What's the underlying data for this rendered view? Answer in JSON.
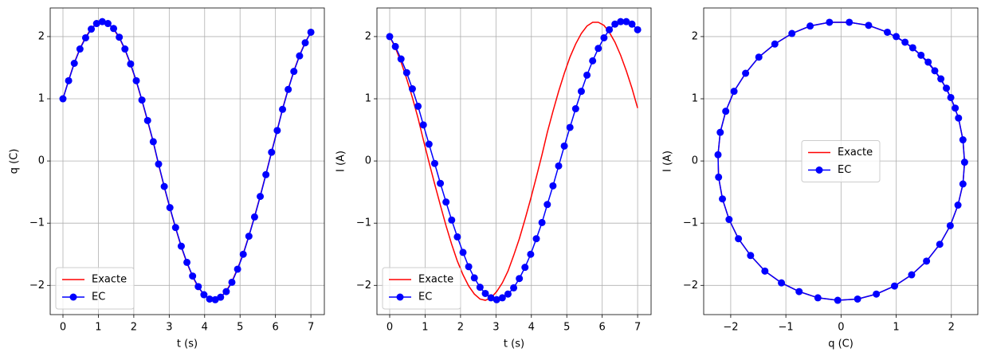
{
  "chart_data": [
    {
      "type": "line",
      "xlabel": "t (s)",
      "ylabel": "q (C)",
      "legend": "lower left",
      "grid": true,
      "x": [
        0,
        0.16,
        0.32,
        0.48,
        0.64,
        0.8,
        0.95,
        1.11,
        1.27,
        1.43,
        1.59,
        1.75,
        1.91,
        2.07,
        2.23,
        2.39,
        2.55,
        2.7,
        2.86,
        3.02,
        3.18,
        3.34,
        3.5,
        3.66,
        3.82,
        3.98,
        4.14,
        4.3,
        4.45,
        4.61,
        4.77,
        4.93,
        5.09,
        5.25,
        5.41,
        5.57,
        5.73,
        5.89,
        6.05,
        6.2,
        6.36,
        6.52,
        6.68,
        6.84,
        7
      ],
      "series": [
        {
          "name": "Exacte",
          "color": "#ff0000",
          "marker": false,
          "values": [
            1,
            1.3,
            1.58,
            1.81,
            1.99,
            2.13,
            2.21,
            2.24,
            2.21,
            2.12,
            1.98,
            1.79,
            1.55,
            1.28,
            0.97,
            0.64,
            0.3,
            -0.06,
            -0.42,
            -0.76,
            -1.08,
            -1.38,
            -1.64,
            -1.86,
            -2.03,
            -2.15,
            -2.22,
            -2.23,
            -2.19,
            -2.09,
            -1.94,
            -1.73,
            -1.49,
            -1.2,
            -0.89,
            -0.56,
            -0.21,
            0.15,
            0.5,
            0.84,
            1.16,
            1.45,
            1.7,
            1.91,
            2.07
          ]
        },
        {
          "name": "EC",
          "color": "#0000ff",
          "marker": true,
          "values": [
            1,
            1.29,
            1.57,
            1.8,
            1.98,
            2.12,
            2.21,
            2.24,
            2.21,
            2.13,
            1.99,
            1.8,
            1.56,
            1.29,
            0.98,
            0.65,
            0.31,
            -0.05,
            -0.41,
            -0.75,
            -1.07,
            -1.37,
            -1.63,
            -1.85,
            -2.02,
            -2.15,
            -2.22,
            -2.23,
            -2.19,
            -2.1,
            -1.95,
            -1.74,
            -1.5,
            -1.21,
            -0.9,
            -0.57,
            -0.22,
            0.14,
            0.49,
            0.83,
            1.15,
            1.44,
            1.69,
            1.9,
            2.07
          ]
        }
      ],
      "xlim": [
        -0.36,
        7.38
      ],
      "ylim": [
        -2.47,
        2.46
      ],
      "xticks": [
        0,
        1,
        2,
        3,
        4,
        5,
        6,
        7
      ],
      "yticks": [
        {
          "value": -2,
          "label": "−2"
        },
        {
          "value": -1,
          "label": "−1"
        },
        0,
        1,
        2
      ]
    },
    {
      "type": "line",
      "xlabel": "t (s)",
      "ylabel": "I (A)",
      "legend": "lower left",
      "grid": true,
      "x": [
        0,
        0.16,
        0.32,
        0.48,
        0.64,
        0.8,
        0.95,
        1.11,
        1.27,
        1.43,
        1.59,
        1.75,
        1.91,
        2.07,
        2.23,
        2.39,
        2.55,
        2.7,
        2.86,
        3.02,
        3.18,
        3.34,
        3.5,
        3.66,
        3.82,
        3.98,
        4.14,
        4.3,
        4.45,
        4.61,
        4.77,
        4.93,
        5.09,
        5.25,
        5.41,
        5.57,
        5.73,
        5.89,
        6.05,
        6.2,
        6.36,
        6.52,
        6.68,
        6.84,
        7
      ],
      "series": [
        {
          "name": "Exacte",
          "color": "#ff0000",
          "marker": false,
          "values": [
            2,
            1.82,
            1.59,
            1.32,
            1.02,
            0.69,
            0.34,
            -0.02,
            -0.37,
            -0.71,
            -1.04,
            -1.34,
            -1.61,
            -1.83,
            -2.01,
            -2.14,
            -2.22,
            -2.24,
            -2.2,
            -2.1,
            -1.96,
            -1.77,
            -1.52,
            -1.25,
            -0.94,
            -0.61,
            -0.26,
            0.1,
            0.46,
            0.8,
            1.12,
            1.41,
            1.67,
            1.88,
            2.05,
            2.17,
            2.23,
            2.23,
            2.18,
            2.07,
            1.91,
            1.7,
            1.45,
            1.17,
            0.85
          ]
        },
        {
          "name": "EC",
          "color": "#0000ff",
          "marker": true,
          "values": [
            2,
            1.84,
            1.64,
            1.42,
            1.16,
            0.88,
            0.58,
            0.27,
            -0.04,
            -0.36,
            -0.66,
            -0.95,
            -1.22,
            -1.47,
            -1.7,
            -1.88,
            -2.03,
            -2.13,
            -2.2,
            -2.23,
            -2.2,
            -2.14,
            -2.04,
            -1.89,
            -1.71,
            -1.5,
            -1.25,
            -0.99,
            -0.7,
            -0.4,
            -0.08,
            0.24,
            0.54,
            0.84,
            1.12,
            1.38,
            1.61,
            1.81,
            1.98,
            2.11,
            2.2,
            2.24,
            2.24,
            2.2,
            2.11
          ]
        }
      ],
      "xlim": [
        -0.36,
        7.38
      ],
      "ylim": [
        -2.47,
        2.46
      ],
      "xticks": [
        0,
        1,
        2,
        3,
        4,
        5,
        6,
        7
      ],
      "yticks": [
        {
          "value": -2,
          "label": "−2"
        },
        {
          "value": -1,
          "label": "−1"
        },
        0,
        1,
        2
      ]
    },
    {
      "type": "line",
      "xlabel": "q (C)",
      "ylabel": "I (A)",
      "legend": "center",
      "grid": true,
      "x": [
        1,
        1.3,
        1.58,
        1.81,
        1.99,
        2.13,
        2.21,
        2.24,
        2.21,
        2.12,
        1.98,
        1.79,
        1.55,
        1.28,
        0.97,
        0.64,
        0.3,
        -0.06,
        -0.42,
        -0.76,
        -1.08,
        -1.38,
        -1.64,
        -1.86,
        -2.03,
        -2.15,
        -2.22,
        -2.23,
        -2.19,
        -2.09,
        -1.94,
        -1.73,
        -1.49,
        -1.2,
        -0.89,
        -0.56,
        -0.21,
        0.15,
        0.5,
        0.84,
        1.16,
        1.45,
        1.7,
        1.91,
        2.07
      ],
      "series": [
        {
          "name": "Exacte",
          "color": "#ff0000",
          "marker": false,
          "values": [
            2,
            1.82,
            1.59,
            1.32,
            1.02,
            0.69,
            0.34,
            -0.02,
            -0.37,
            -0.71,
            -1.04,
            -1.34,
            -1.61,
            -1.83,
            -2.01,
            -2.14,
            -2.22,
            -2.24,
            -2.2,
            -2.1,
            -1.96,
            -1.77,
            -1.52,
            -1.25,
            -0.94,
            -0.61,
            -0.26,
            0.1,
            0.46,
            0.8,
            1.12,
            1.41,
            1.67,
            1.88,
            2.05,
            2.17,
            2.23,
            2.23,
            2.18,
            2.07,
            1.91,
            1.7,
            1.45,
            1.17,
            0.85
          ]
        },
        {
          "name": "EC",
          "color": "#0000ff",
          "marker": true,
          "values": [
            2,
            1.82,
            1.59,
            1.32,
            1.02,
            0.69,
            0.34,
            -0.02,
            -0.37,
            -0.71,
            -1.04,
            -1.34,
            -1.61,
            -1.83,
            -2.01,
            -2.14,
            -2.22,
            -2.24,
            -2.2,
            -2.1,
            -1.96,
            -1.77,
            -1.52,
            -1.25,
            -0.94,
            -0.61,
            -0.26,
            0.1,
            0.46,
            0.8,
            1.12,
            1.41,
            1.67,
            1.88,
            2.05,
            2.17,
            2.23,
            2.23,
            2.18,
            2.07,
            1.91,
            1.7,
            1.45,
            1.17,
            0.85
          ]
        }
      ],
      "xlim": [
        -2.49,
        2.48
      ],
      "ylim": [
        -2.47,
        2.46
      ],
      "xticks": [
        {
          "value": -2,
          "label": "−2"
        },
        {
          "value": -1,
          "label": "−1"
        },
        0,
        1,
        2
      ],
      "yticks": [
        {
          "value": -2,
          "label": "−2"
        },
        {
          "value": -1,
          "label": "−1"
        },
        0,
        1,
        2
      ]
    }
  ]
}
